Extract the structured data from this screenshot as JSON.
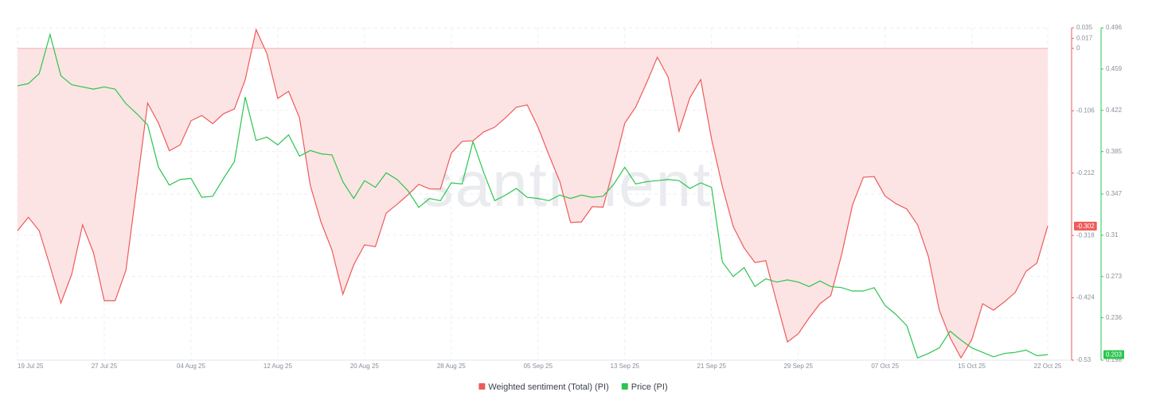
{
  "chart_data": {
    "type": "line",
    "watermark": "santiment",
    "categories": [
      "19 Jul 25",
      null,
      null,
      null,
      null,
      null,
      null,
      null,
      "27 Jul 25",
      null,
      null,
      null,
      null,
      null,
      null,
      null,
      "04 Aug 25",
      null,
      null,
      null,
      null,
      null,
      null,
      null,
      "12 Aug 25",
      null,
      null,
      null,
      null,
      null,
      null,
      null,
      "20 Aug 25",
      null,
      null,
      null,
      null,
      null,
      null,
      null,
      "28 Aug 25",
      null,
      null,
      null,
      null,
      null,
      null,
      null,
      "05 Sep 25",
      null,
      null,
      null,
      null,
      null,
      null,
      null,
      "13 Sep 25",
      null,
      null,
      null,
      null,
      null,
      null,
      null,
      "21 Sep 25",
      null,
      null,
      null,
      null,
      null,
      null,
      null,
      "29 Sep 25",
      null,
      null,
      null,
      null,
      null,
      null,
      null,
      "07 Oct 25",
      null,
      null,
      null,
      null,
      null,
      null,
      null,
      "15 Oct 25",
      null,
      null,
      null,
      null,
      null,
      null,
      "22 Oct 25"
    ],
    "series": [
      {
        "name": "Weighted sentiment (Total) (PI)",
        "color": "#ef5a5a",
        "fill": "#fde4e4",
        "axis": "y",
        "values": [
          -0.31,
          -0.287,
          -0.31,
          -0.37,
          -0.433,
          -0.384,
          -0.3,
          -0.347,
          -0.429,
          -0.429,
          -0.377,
          -0.235,
          -0.093,
          -0.127,
          -0.174,
          -0.164,
          -0.123,
          -0.114,
          -0.128,
          -0.111,
          -0.103,
          -0.053,
          0.032,
          -0.009,
          -0.085,
          -0.073,
          -0.118,
          -0.233,
          -0.296,
          -0.343,
          -0.418,
          -0.368,
          -0.334,
          -0.337,
          -0.28,
          -0.265,
          -0.249,
          -0.231,
          -0.239,
          -0.239,
          -0.178,
          -0.158,
          -0.157,
          -0.142,
          -0.134,
          -0.118,
          -0.1,
          -0.096,
          -0.134,
          -0.181,
          -0.226,
          -0.296,
          -0.295,
          -0.269,
          -0.27,
          -0.201,
          -0.127,
          -0.1,
          -0.059,
          -0.015,
          -0.049,
          -0.141,
          -0.084,
          -0.053,
          -0.154,
          -0.235,
          -0.303,
          -0.339,
          -0.364,
          -0.361,
          -0.431,
          -0.499,
          -0.485,
          -0.458,
          -0.434,
          -0.42,
          -0.35,
          -0.266,
          -0.219,
          -0.218,
          -0.251,
          -0.264,
          -0.273,
          -0.3,
          -0.354,
          -0.445,
          -0.492,
          -0.526,
          -0.495,
          -0.434,
          -0.445,
          -0.431,
          -0.415,
          -0.379,
          -0.365,
          -0.302
        ]
      },
      {
        "name": "Price (PI)",
        "color": "#2bc54f",
        "axis": "y2",
        "values": [
          0.444,
          0.446,
          0.455,
          0.49,
          0.453,
          0.445,
          0.443,
          0.441,
          0.443,
          0.441,
          0.428,
          0.419,
          0.409,
          0.371,
          0.355,
          0.36,
          0.361,
          0.344,
          0.345,
          0.361,
          0.376,
          0.434,
          0.395,
          0.398,
          0.391,
          0.4,
          0.381,
          0.386,
          0.383,
          0.382,
          0.358,
          0.343,
          0.359,
          0.353,
          0.366,
          0.36,
          0.35,
          0.335,
          0.343,
          0.341,
          0.357,
          0.356,
          0.394,
          0.366,
          0.341,
          0.346,
          0.352,
          0.344,
          0.343,
          0.341,
          0.346,
          0.343,
          0.346,
          0.344,
          0.345,
          0.356,
          0.371,
          0.356,
          0.358,
          0.359,
          0.36,
          0.359,
          0.352,
          0.357,
          0.353,
          0.286,
          0.273,
          0.281,
          0.264,
          0.271,
          0.268,
          0.27,
          0.268,
          0.264,
          0.269,
          0.264,
          0.263,
          0.26,
          0.26,
          0.263,
          0.247,
          0.239,
          0.229,
          0.2,
          0.204,
          0.209,
          0.224,
          0.216,
          0.209,
          0.205,
          0.201,
          0.204,
          0.205,
          0.207,
          0.202,
          0.203
        ]
      }
    ],
    "ylim": [
      -0.53,
      0.035
    ],
    "yticks": [
      0.035,
      0.017,
      0,
      -0.106,
      -0.212,
      -0.318,
      -0.424,
      -0.53
    ],
    "y2lim": [
      0.198,
      0.496
    ],
    "y2ticks": [
      0.496,
      0.459,
      0.422,
      0.385,
      0.347,
      0.31,
      0.273,
      0.236,
      0.198
    ],
    "grid": true
  }
}
